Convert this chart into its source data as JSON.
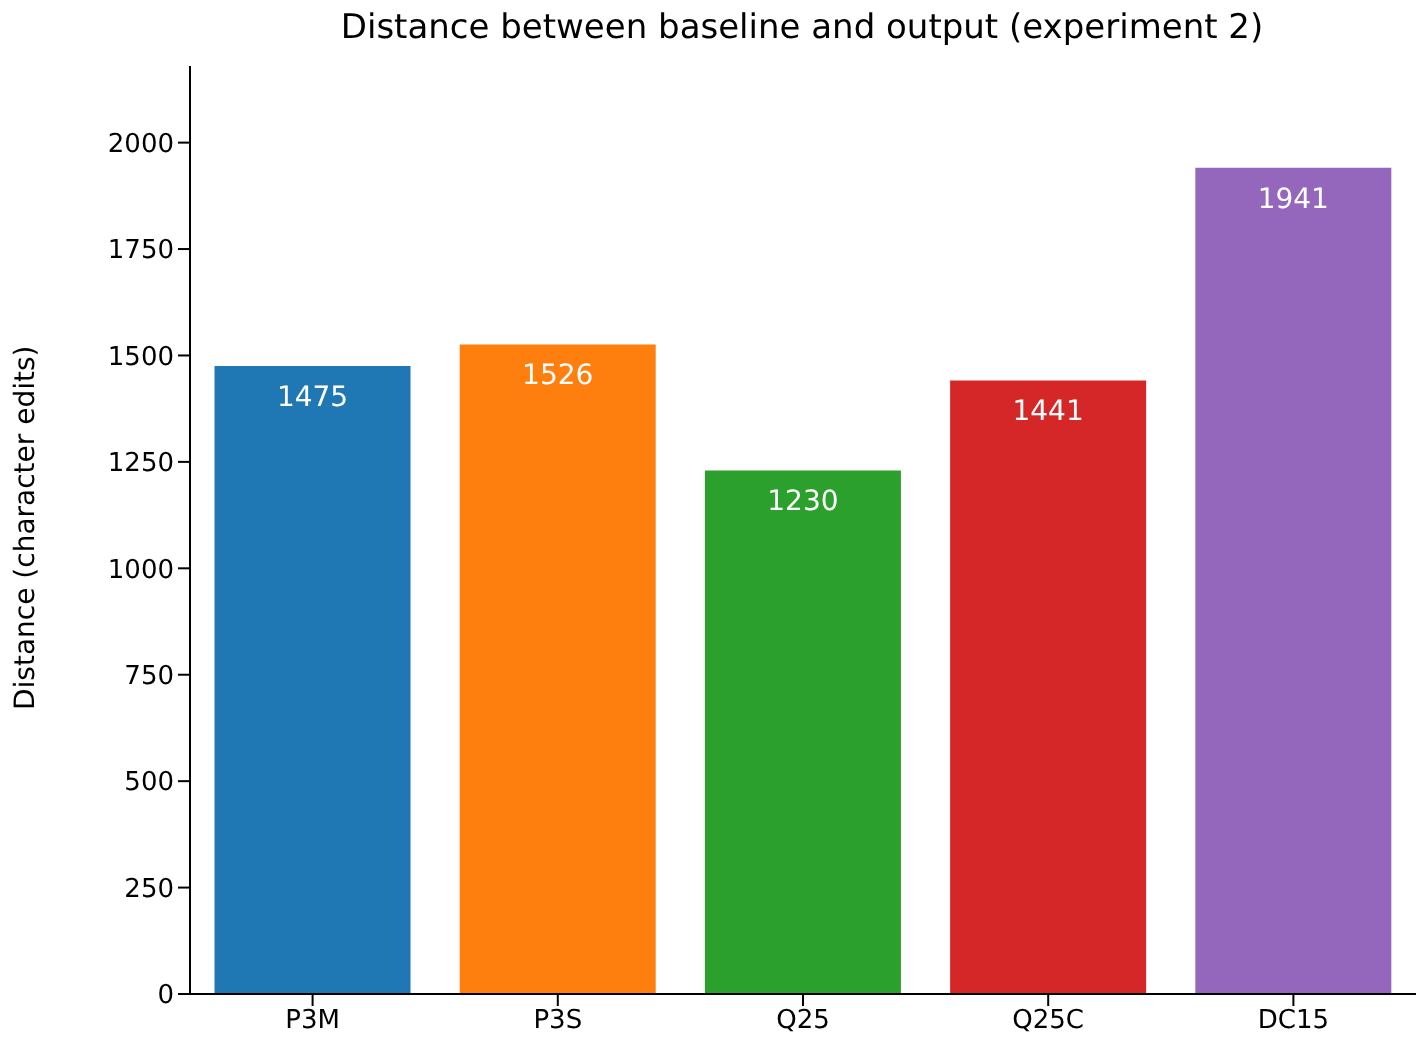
{
  "chart_data": {
    "type": "bar",
    "title": "Distance between baseline and output (experiment 2)",
    "ylabel": "Distance (character edits)",
    "categories": [
      "P3M",
      "P3S",
      "Q25",
      "Q25C",
      "DC15"
    ],
    "values": [
      1475,
      1526,
      1230,
      1441,
      1941
    ],
    "colors": [
      "#1f77b4",
      "#ff7f0e",
      "#2ca02c",
      "#d62728",
      "#9467bd"
    ],
    "ylim": [
      0,
      2180
    ],
    "yticks": [
      0,
      250,
      500,
      750,
      1000,
      1250,
      1500,
      1750,
      2000
    ],
    "data_labels": true
  }
}
